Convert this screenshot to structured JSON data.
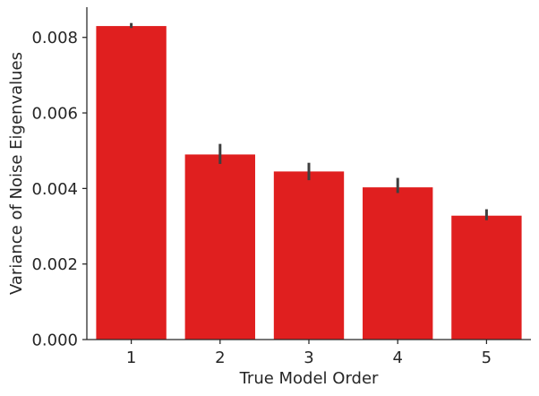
{
  "chart_data": {
    "type": "bar",
    "title": "",
    "xlabel": "True Model Order",
    "ylabel": "Variance of Noise Eigenvalues",
    "categories": [
      "1",
      "2",
      "3",
      "4",
      "5"
    ],
    "values": [
      0.0083,
      0.0049,
      0.00445,
      0.00403,
      0.00328
    ],
    "error_bars": [
      [
        0.00825,
        0.00838
      ],
      [
        0.00465,
        0.00518
      ],
      [
        0.00422,
        0.00468
      ],
      [
        0.00388,
        0.00428
      ],
      [
        0.00316,
        0.00345
      ]
    ],
    "ylim": [
      0,
      0.0088
    ],
    "yticks": [
      0.0,
      0.002,
      0.004,
      0.006,
      0.008
    ],
    "ytick_labels": [
      "0.000",
      "0.002",
      "0.004",
      "0.006",
      "0.008"
    ],
    "grid": false,
    "bar_color": "#e01f1f",
    "error_color": "#3f3f3f"
  }
}
